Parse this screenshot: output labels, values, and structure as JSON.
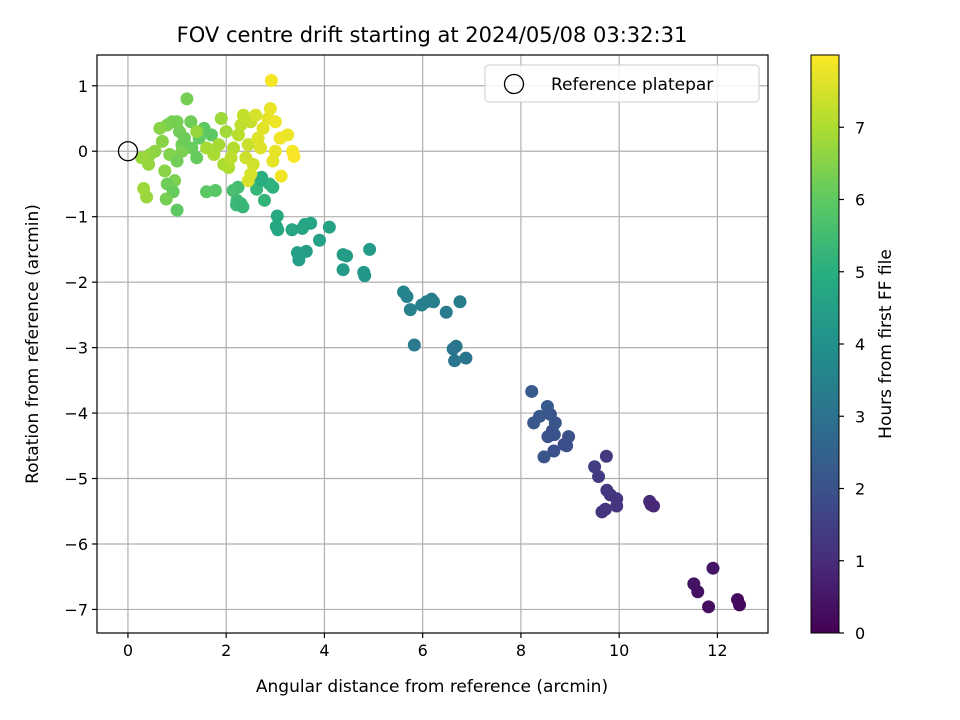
{
  "chart_data": {
    "type": "scatter",
    "title": "FOV centre drift starting at 2024/05/08 03:32:31",
    "xlabel": "Angular distance from reference (arcmin)",
    "ylabel": "Rotation from reference (arcmin)",
    "xlim": [
      -0.63,
      13.03
    ],
    "ylim": [
      -7.36,
      1.47
    ],
    "xticks": [
      0,
      2,
      4,
      6,
      8,
      10,
      12
    ],
    "xtick_labels": [
      "0",
      "2",
      "4",
      "6",
      "8",
      "10",
      "12"
    ],
    "yticks": [
      1,
      0,
      -1,
      -2,
      -3,
      -4,
      -5,
      -6,
      -7
    ],
    "ytick_labels": [
      "1",
      "0",
      "−1",
      "−2",
      "−3",
      "−4",
      "−5",
      "−6",
      "−7"
    ],
    "grid": true,
    "legend": {
      "entries": [
        "Reference platepar"
      ],
      "placement": "top-right"
    },
    "colorbar": {
      "label": "Hours from first FF file",
      "colormap": "viridis",
      "range": [
        0,
        8
      ],
      "ticks": [
        0,
        1,
        2,
        3,
        4,
        5,
        6,
        7
      ],
      "tick_labels": [
        "0",
        "1",
        "2",
        "3",
        "4",
        "5",
        "6",
        "7"
      ]
    },
    "reference_point": {
      "x": 0,
      "y": 0
    },
    "points": [
      {
        "x": 11.91,
        "y": -6.37,
        "c": 0.45
      },
      {
        "x": 11.52,
        "y": -6.61,
        "c": 0.4
      },
      {
        "x": 11.6,
        "y": -6.73,
        "c": 0.38
      },
      {
        "x": 11.82,
        "y": -6.96,
        "c": 0.3
      },
      {
        "x": 12.41,
        "y": -6.85,
        "c": 0.22
      },
      {
        "x": 12.45,
        "y": -6.93,
        "c": 0.18
      },
      {
        "x": 10.62,
        "y": -5.35,
        "c": 0.98
      },
      {
        "x": 10.7,
        "y": -5.42,
        "c": 0.95
      },
      {
        "x": 10.65,
        "y": -5.4,
        "c": 0.92
      },
      {
        "x": 9.74,
        "y": -4.66,
        "c": 1.35
      },
      {
        "x": 9.5,
        "y": -4.82,
        "c": 1.42
      },
      {
        "x": 9.58,
        "y": -4.97,
        "c": 1.38
      },
      {
        "x": 9.75,
        "y": -5.18,
        "c": 1.3
      },
      {
        "x": 9.82,
        "y": -5.25,
        "c": 1.28
      },
      {
        "x": 9.95,
        "y": -5.31,
        "c": 1.22
      },
      {
        "x": 9.95,
        "y": -5.42,
        "c": 1.18
      },
      {
        "x": 9.72,
        "y": -5.47,
        "c": 1.25
      },
      {
        "x": 9.65,
        "y": -5.51,
        "c": 1.2
      },
      {
        "x": 8.22,
        "y": -3.67,
        "c": 2.3
      },
      {
        "x": 8.38,
        "y": -4.05,
        "c": 2.2
      },
      {
        "x": 8.26,
        "y": -4.15,
        "c": 2.18
      },
      {
        "x": 8.54,
        "y": -3.9,
        "c": 2.25
      },
      {
        "x": 8.6,
        "y": -4.02,
        "c": 2.15
      },
      {
        "x": 8.7,
        "y": -4.15,
        "c": 2.1
      },
      {
        "x": 8.64,
        "y": -4.27,
        "c": 2.05
      },
      {
        "x": 8.55,
        "y": -4.36,
        "c": 2.0
      },
      {
        "x": 8.68,
        "y": -4.33,
        "c": 2.02
      },
      {
        "x": 8.97,
        "y": -4.36,
        "c": 1.95
      },
      {
        "x": 8.88,
        "y": -4.48,
        "c": 1.9
      },
      {
        "x": 8.93,
        "y": -4.5,
        "c": 1.92
      },
      {
        "x": 8.67,
        "y": -4.58,
        "c": 1.98
      },
      {
        "x": 8.47,
        "y": -4.67,
        "c": 2.08
      },
      {
        "x": 5.61,
        "y": -2.15,
        "c": 3.6
      },
      {
        "x": 5.68,
        "y": -2.22,
        "c": 3.55
      },
      {
        "x": 5.75,
        "y": -2.42,
        "c": 3.5
      },
      {
        "x": 5.98,
        "y": -2.35,
        "c": 3.45
      },
      {
        "x": 6.08,
        "y": -2.3,
        "c": 3.42
      },
      {
        "x": 6.18,
        "y": -2.26,
        "c": 3.4
      },
      {
        "x": 6.22,
        "y": -2.3,
        "c": 3.38
      },
      {
        "x": 6.48,
        "y": -2.46,
        "c": 3.3
      },
      {
        "x": 6.76,
        "y": -2.3,
        "c": 3.35
      },
      {
        "x": 5.83,
        "y": -2.96,
        "c": 3.25
      },
      {
        "x": 6.68,
        "y": -2.98,
        "c": 3.15
      },
      {
        "x": 6.62,
        "y": -3.02,
        "c": 3.1
      },
      {
        "x": 6.88,
        "y": -3.16,
        "c": 3.05
      },
      {
        "x": 6.65,
        "y": -3.2,
        "c": 3.08
      },
      {
        "x": 3.04,
        "y": -0.99,
        "c": 4.8
      },
      {
        "x": 3.02,
        "y": -1.15,
        "c": 4.78
      },
      {
        "x": 3.05,
        "y": -1.2,
        "c": 4.75
      },
      {
        "x": 3.34,
        "y": -1.2,
        "c": 4.72
      },
      {
        "x": 3.6,
        "y": -1.12,
        "c": 4.7
      },
      {
        "x": 3.72,
        "y": -1.1,
        "c": 4.68
      },
      {
        "x": 3.55,
        "y": -1.18,
        "c": 4.66
      },
      {
        "x": 4.1,
        "y": -1.16,
        "c": 4.6
      },
      {
        "x": 3.9,
        "y": -1.36,
        "c": 4.55
      },
      {
        "x": 3.45,
        "y": -1.55,
        "c": 4.5
      },
      {
        "x": 3.63,
        "y": -1.53,
        "c": 4.48
      },
      {
        "x": 3.48,
        "y": -1.66,
        "c": 4.45
      },
      {
        "x": 4.38,
        "y": -1.58,
        "c": 4.4
      },
      {
        "x": 4.45,
        "y": -1.6,
        "c": 4.38
      },
      {
        "x": 4.92,
        "y": -1.5,
        "c": 4.35
      },
      {
        "x": 4.38,
        "y": -1.81,
        "c": 4.3
      },
      {
        "x": 4.8,
        "y": -1.85,
        "c": 4.25
      },
      {
        "x": 4.82,
        "y": -1.9,
        "c": 4.2
      },
      {
        "x": 2.24,
        "y": -0.55,
        "c": 5.5
      },
      {
        "x": 2.14,
        "y": -0.6,
        "c": 5.6
      },
      {
        "x": 2.22,
        "y": -0.75,
        "c": 5.45
      },
      {
        "x": 2.3,
        "y": -0.8,
        "c": 5.4
      },
      {
        "x": 2.21,
        "y": -0.82,
        "c": 5.35
      },
      {
        "x": 2.34,
        "y": -0.85,
        "c": 5.3
      },
      {
        "x": 2.78,
        "y": -0.75,
        "c": 5.2
      },
      {
        "x": 2.62,
        "y": -0.58,
        "c": 5.25
      },
      {
        "x": 2.88,
        "y": -0.5,
        "c": 5.15
      },
      {
        "x": 2.95,
        "y": -0.55,
        "c": 5.1
      },
      {
        "x": 2.7,
        "y": -0.45,
        "c": 5.05
      },
      {
        "x": 2.72,
        "y": -0.4,
        "c": 5.0
      },
      {
        "x": 1.2,
        "y": 0.8,
        "c": 6.3
      },
      {
        "x": 0.8,
        "y": 0.4,
        "c": 6.4
      },
      {
        "x": 0.9,
        "y": 0.45,
        "c": 6.35
      },
      {
        "x": 1.05,
        "y": 0.3,
        "c": 6.25
      },
      {
        "x": 0.7,
        "y": 0.15,
        "c": 6.5
      },
      {
        "x": 0.55,
        "y": 0.0,
        "c": 6.6
      },
      {
        "x": 0.45,
        "y": -0.05,
        "c": 6.65
      },
      {
        "x": 0.42,
        "y": -0.2,
        "c": 6.7
      },
      {
        "x": 0.28,
        "y": -0.1,
        "c": 6.75
      },
      {
        "x": 0.85,
        "y": -0.05,
        "c": 6.45
      },
      {
        "x": 0.75,
        "y": -0.3,
        "c": 6.55
      },
      {
        "x": 0.95,
        "y": -0.45,
        "c": 6.4
      },
      {
        "x": 0.32,
        "y": -0.57,
        "c": 6.8
      },
      {
        "x": 0.38,
        "y": -0.7,
        "c": 6.75
      },
      {
        "x": 0.8,
        "y": -0.5,
        "c": 6.2
      },
      {
        "x": 0.92,
        "y": -0.62,
        "c": 6.1
      },
      {
        "x": 0.78,
        "y": -0.73,
        "c": 6.3
      },
      {
        "x": 1.0,
        "y": -0.9,
        "c": 6.0
      },
      {
        "x": 1.6,
        "y": -0.62,
        "c": 5.95
      },
      {
        "x": 1.78,
        "y": -0.6,
        "c": 5.9
      },
      {
        "x": 1.1,
        "y": 0.1,
        "c": 6.2
      },
      {
        "x": 1.3,
        "y": 0.05,
        "c": 6.15
      },
      {
        "x": 1.45,
        "y": 0.2,
        "c": 6.05
      },
      {
        "x": 1.55,
        "y": 0.35,
        "c": 6.0
      },
      {
        "x": 1.7,
        "y": 0.25,
        "c": 5.95
      },
      {
        "x": 1.4,
        "y": -0.1,
        "c": 6.1
      },
      {
        "x": 1.0,
        "y": -0.15,
        "c": 6.25
      },
      {
        "x": 1.15,
        "y": 0.2,
        "c": 6.18
      },
      {
        "x": 1.28,
        "y": 0.45,
        "c": 6.22
      },
      {
        "x": 1.0,
        "y": 0.45,
        "c": 6.3
      },
      {
        "x": 1.9,
        "y": 0.5,
        "c": 6.8
      },
      {
        "x": 2.0,
        "y": 0.3,
        "c": 6.85
      },
      {
        "x": 1.85,
        "y": 0.1,
        "c": 6.9
      },
      {
        "x": 1.75,
        "y": -0.05,
        "c": 6.95
      },
      {
        "x": 1.95,
        "y": -0.2,
        "c": 7.0
      },
      {
        "x": 2.05,
        "y": -0.25,
        "c": 7.05
      },
      {
        "x": 2.15,
        "y": 0.05,
        "c": 7.1
      },
      {
        "x": 2.25,
        "y": 0.25,
        "c": 7.15
      },
      {
        "x": 2.3,
        "y": 0.4,
        "c": 7.2
      },
      {
        "x": 2.35,
        "y": 0.55,
        "c": 7.25
      },
      {
        "x": 2.5,
        "y": 0.45,
        "c": 7.3
      },
      {
        "x": 2.45,
        "y": 0.1,
        "c": 7.35
      },
      {
        "x": 2.4,
        "y": -0.1,
        "c": 7.4
      },
      {
        "x": 2.55,
        "y": -0.2,
        "c": 7.45
      },
      {
        "x": 2.5,
        "y": -0.35,
        "c": 7.5
      },
      {
        "x": 2.45,
        "y": -0.45,
        "c": 7.55
      },
      {
        "x": 2.65,
        "y": 0.2,
        "c": 7.6
      },
      {
        "x": 2.75,
        "y": 0.35,
        "c": 7.65
      },
      {
        "x": 2.85,
        "y": 0.5,
        "c": 7.7
      },
      {
        "x": 2.9,
        "y": 0.65,
        "c": 7.75
      },
      {
        "x": 3.0,
        "y": 0.45,
        "c": 7.8
      },
      {
        "x": 2.92,
        "y": 1.08,
        "c": 7.9
      },
      {
        "x": 3.1,
        "y": 0.2,
        "c": 7.85
      },
      {
        "x": 3.25,
        "y": 0.25,
        "c": 7.8
      },
      {
        "x": 3.0,
        "y": 0.0,
        "c": 7.75
      },
      {
        "x": 2.95,
        "y": -0.15,
        "c": 7.7
      },
      {
        "x": 3.35,
        "y": 0.0,
        "c": 7.9
      },
      {
        "x": 3.38,
        "y": -0.08,
        "c": 7.95
      },
      {
        "x": 3.12,
        "y": -0.38,
        "c": 7.85
      },
      {
        "x": 2.7,
        "y": 0.05,
        "c": 7.6
      },
      {
        "x": 1.6,
        "y": 0.05,
        "c": 6.9
      },
      {
        "x": 1.4,
        "y": 0.3,
        "c": 6.7
      },
      {
        "x": 0.65,
        "y": 0.35,
        "c": 6.55
      },
      {
        "x": 1.1,
        "y": 0.0,
        "c": 6.35
      },
      {
        "x": 2.1,
        "y": -0.1,
        "c": 7.2
      },
      {
        "x": 2.6,
        "y": 0.55,
        "c": 7.5
      }
    ]
  }
}
